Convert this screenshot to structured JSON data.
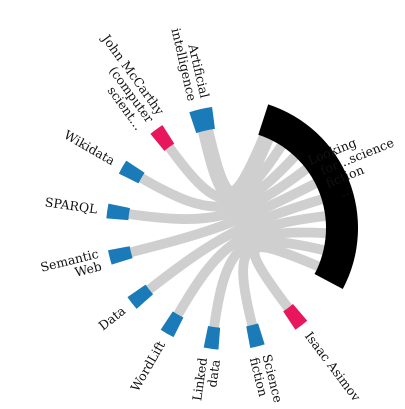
{
  "colors": {
    "hub": "#000000",
    "blue": "#1a7bb8",
    "pink": "#e8175d",
    "chord": "#cfcfcf",
    "text": "#111111"
  },
  "hub": {
    "label": "Looking for…science fiction …"
  },
  "nodes": [
    {
      "id": "artificial-intelligence",
      "label": "Artificial intelligence",
      "color": "blue"
    },
    {
      "id": "john-mccarthy",
      "label": "John McCarthy (computer scient…",
      "color": "pink"
    },
    {
      "id": "wikidata",
      "label": "Wikidata",
      "color": "blue"
    },
    {
      "id": "sparql",
      "label": "SPARQL",
      "color": "blue"
    },
    {
      "id": "semantic-web",
      "label": "Semantic Web",
      "color": "blue"
    },
    {
      "id": "data",
      "label": "Data",
      "color": "blue"
    },
    {
      "id": "wordlift",
      "label": "WordLift",
      "color": "blue"
    },
    {
      "id": "linked-data",
      "label": "Linked data",
      "color": "blue"
    },
    {
      "id": "science-fiction",
      "label": "Science fiction",
      "color": "blue"
    },
    {
      "id": "isaac-asimov",
      "label": "Isaac Asimov",
      "color": "pink"
    }
  ]
}
